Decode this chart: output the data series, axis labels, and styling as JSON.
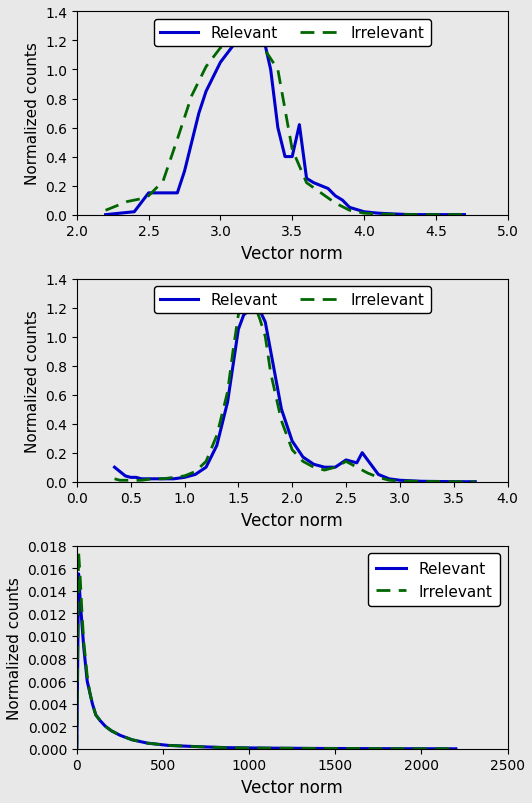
{
  "plot1": {
    "xlim": [
      2.0,
      5.0
    ],
    "ylim": [
      0.0,
      1.4
    ],
    "xticks": [
      2.0,
      2.5,
      3.0,
      3.5,
      4.0,
      4.5,
      5.0
    ],
    "yticks": [
      0.0,
      0.2,
      0.4,
      0.6,
      0.8,
      1.0,
      1.2,
      1.4
    ],
    "xlabel": "Vector norm",
    "ylabel": "Normalized counts",
    "relevant_x": [
      2.2,
      2.3,
      2.4,
      2.5,
      2.55,
      2.6,
      2.65,
      2.7,
      2.75,
      2.8,
      2.85,
      2.9,
      3.0,
      3.1,
      3.15,
      3.2,
      3.25,
      3.3,
      3.35,
      3.4,
      3.45,
      3.5,
      3.55,
      3.6,
      3.65,
      3.7,
      3.75,
      3.8,
      3.85,
      3.9,
      4.0,
      4.1,
      4.2,
      4.3,
      4.4,
      4.5,
      4.6,
      4.7
    ],
    "relevant_y": [
      0.0,
      0.01,
      0.02,
      0.15,
      0.15,
      0.15,
      0.15,
      0.15,
      0.3,
      0.5,
      0.7,
      0.85,
      1.05,
      1.18,
      1.22,
      1.25,
      1.25,
      1.22,
      1.0,
      0.6,
      0.4,
      0.4,
      0.62,
      0.25,
      0.22,
      0.2,
      0.18,
      0.13,
      0.1,
      0.05,
      0.02,
      0.01,
      0.005,
      0.001,
      0.0,
      0.0,
      0.0,
      0.0
    ],
    "irrelevant_x": [
      2.2,
      2.25,
      2.3,
      2.35,
      2.4,
      2.45,
      2.5,
      2.55,
      2.6,
      2.7,
      2.8,
      2.9,
      3.0,
      3.1,
      3.2,
      3.3,
      3.4,
      3.5,
      3.6,
      3.7,
      3.8,
      3.9,
      4.0,
      4.1,
      4.2,
      4.3,
      4.4,
      4.5,
      4.6,
      4.7
    ],
    "irrelevant_y": [
      0.03,
      0.05,
      0.07,
      0.09,
      0.1,
      0.11,
      0.13,
      0.18,
      0.23,
      0.52,
      0.82,
      1.02,
      1.15,
      1.2,
      1.23,
      1.15,
      1.0,
      0.45,
      0.22,
      0.15,
      0.08,
      0.03,
      0.01,
      0.005,
      0.002,
      0.001,
      0.0,
      0.0,
      0.0,
      0.0
    ]
  },
  "plot2": {
    "xlim": [
      0.0,
      4.0
    ],
    "ylim": [
      0.0,
      1.4
    ],
    "xticks": [
      0.0,
      0.5,
      1.0,
      1.5,
      2.0,
      2.5,
      3.0,
      3.5,
      4.0
    ],
    "yticks": [
      0.0,
      0.2,
      0.4,
      0.6,
      0.8,
      1.0,
      1.2,
      1.4
    ],
    "xlabel": "Vector norm",
    "ylabel": "Normalized counts",
    "relevant_x": [
      0.35,
      0.4,
      0.45,
      0.5,
      0.55,
      0.6,
      0.7,
      0.8,
      0.9,
      1.0,
      1.1,
      1.2,
      1.3,
      1.4,
      1.45,
      1.5,
      1.55,
      1.6,
      1.65,
      1.7,
      1.75,
      1.8,
      1.9,
      2.0,
      2.1,
      2.2,
      2.3,
      2.4,
      2.5,
      2.6,
      2.65,
      2.7,
      2.75,
      2.8,
      2.9,
      3.0,
      3.2,
      3.4,
      3.6,
      3.7
    ],
    "relevant_y": [
      0.1,
      0.07,
      0.04,
      0.03,
      0.03,
      0.02,
      0.02,
      0.02,
      0.02,
      0.03,
      0.05,
      0.1,
      0.25,
      0.55,
      0.8,
      1.05,
      1.15,
      1.18,
      1.2,
      1.18,
      1.1,
      0.9,
      0.5,
      0.28,
      0.17,
      0.12,
      0.1,
      0.1,
      0.15,
      0.13,
      0.2,
      0.15,
      0.1,
      0.05,
      0.02,
      0.01,
      0.003,
      0.001,
      0.0,
      0.0
    ],
    "irrelevant_x": [
      0.35,
      0.4,
      0.45,
      0.5,
      0.55,
      0.6,
      0.7,
      0.8,
      0.9,
      1.0,
      1.1,
      1.2,
      1.3,
      1.4,
      1.45,
      1.5,
      1.55,
      1.6,
      1.65,
      1.7,
      1.75,
      1.8,
      1.9,
      2.0,
      2.1,
      2.2,
      2.3,
      2.4,
      2.5,
      2.6,
      2.7,
      2.8,
      2.9,
      3.0,
      3.2,
      3.4,
      3.5,
      3.6,
      3.7
    ],
    "irrelevant_y": [
      0.02,
      0.01,
      0.01,
      0.01,
      0.01,
      0.01,
      0.02,
      0.02,
      0.03,
      0.04,
      0.07,
      0.14,
      0.32,
      0.62,
      0.9,
      1.15,
      1.25,
      1.28,
      1.22,
      1.12,
      1.0,
      0.75,
      0.42,
      0.22,
      0.14,
      0.1,
      0.08,
      0.1,
      0.14,
      0.1,
      0.06,
      0.03,
      0.01,
      0.005,
      0.002,
      0.001,
      0.0,
      0.0,
      0.0
    ]
  },
  "plot3": {
    "xlim": [
      0,
      2500
    ],
    "ylim": [
      0.0,
      0.018
    ],
    "xticks": [
      0,
      500,
      1000,
      1500,
      2000,
      2500
    ],
    "yticks": [
      0.0,
      0.002,
      0.004,
      0.006,
      0.008,
      0.01,
      0.012,
      0.014,
      0.016,
      0.018
    ],
    "xlabel": "Vector norm",
    "ylabel": "Normalized counts",
    "relevant_x": [
      0,
      10,
      20,
      30,
      40,
      50,
      60,
      75,
      90,
      110,
      135,
      165,
      200,
      250,
      320,
      410,
      530,
      680,
      870,
      1100,
      1400,
      1800,
      2200
    ],
    "relevant_y": [
      0.0,
      0.0155,
      0.013,
      0.011,
      0.009,
      0.0075,
      0.006,
      0.005,
      0.004,
      0.003,
      0.0025,
      0.002,
      0.0016,
      0.0012,
      0.0008,
      0.0005,
      0.0003,
      0.0002,
      0.0001,
      6e-05,
      3e-05,
      1e-05,
      0.0
    ],
    "irrelevant_x": [
      0,
      10,
      20,
      30,
      40,
      50,
      60,
      75,
      90,
      110,
      135,
      165,
      200,
      250,
      320,
      410,
      530,
      680,
      870,
      1100,
      1400,
      1800,
      2200
    ],
    "irrelevant_y": [
      0.0,
      0.0175,
      0.015,
      0.012,
      0.0095,
      0.008,
      0.0065,
      0.005,
      0.004,
      0.003,
      0.0025,
      0.002,
      0.0016,
      0.0012,
      0.0008,
      0.0005,
      0.0003,
      0.0002,
      0.0001,
      6e-05,
      3e-05,
      1e-05,
      0.0
    ]
  },
  "relevant_color": "#0000cc",
  "irrelevant_color": "#006600",
  "relevant_lw": 2.2,
  "irrelevant_lw": 2.0,
  "bg_color": "#e8e8e8"
}
